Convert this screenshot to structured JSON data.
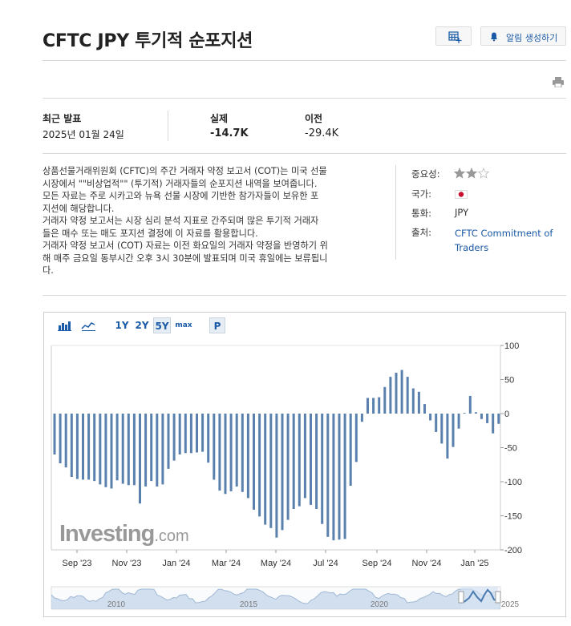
{
  "header": {
    "title": "CFTC JPY 투기적 순포지션",
    "alert_label": "알림 생성하기"
  },
  "stats": {
    "latest_label": "최근 발표",
    "latest_date": "2025년 01월 24일",
    "actual_label": "실제",
    "actual_value": "-14.7K",
    "previous_label": "이전",
    "previous_value": "-29.4K"
  },
  "description": "상품선물거래위원회 (CFTC)의 주간 거래자 약정 보고서 (COT)는 미국 선물\n시장에서 \"\"비상업적\"\" (투기적) 거래자들의 순포지션 내역을 보여줍니다.\n모든 자료는 주로 시카고와 뉴욕 선물 시장에 기반한 참가자들이 보유한 포\n지션에 해당합니다.\n거래자 약정 보고서는 시장 심리 분석 지표로 간주되며 많은 투기적 거래자\n들은 매수 또는 매도 포지션 결정에 이 자료를 활용합니다.\n거래자 약정 보고서 (COT) 자료는 이전 화요일의 거래자 약정을 반영하기 위\n해 매주 금요일 동부시간 오후 3시 30분에 발표되며 미국 휴일에는 보류됩니\n다.",
  "sidebar": {
    "importance_label": "중요성:",
    "importance_stars": 2,
    "country_label": "국가:",
    "country_icon": "japan-flag-icon",
    "currency_label": "통화:",
    "currency_value": "JPY",
    "source_label": "출처:",
    "source_value": "CFTC Commitment of Traders"
  },
  "toolbar": {
    "bar_icon": "bar-chart-icon",
    "line_icon": "line-chart-icon",
    "range_1y": "1Y",
    "range_2y": "2Y",
    "range_5y": "5Y",
    "range_max": "max",
    "p_button": "P",
    "active_range": "5Y"
  },
  "watermark": {
    "brand": "Investing",
    "suffix": ".com"
  },
  "colors": {
    "bar": "#5a81ad",
    "link": "#1a5aa6",
    "navigator_fill": "#b7cde6",
    "navigator_line": "#4a7ab0"
  },
  "chart_data": {
    "type": "bar",
    "title": "",
    "xlabel": "",
    "ylabel": "",
    "ylim": [
      -200,
      100
    ],
    "y_ticks": [
      "100",
      "50",
      "0",
      "-50",
      "-100",
      "-150",
      "-200"
    ],
    "x_tick_labels": [
      "Sep '23",
      "Nov '23",
      "Jan '24",
      "Mar '24",
      "May '24",
      "Jul '24",
      "Sep '24",
      "Nov '24",
      "Jan '25"
    ],
    "navigator_labels": [
      "2010",
      "2015",
      "2020",
      "2025"
    ],
    "unit": "K",
    "series": [
      {
        "values": [
          -60,
          -73,
          -79,
          -93,
          -96,
          -97,
          -97,
          -99,
          -104,
          -108,
          -110,
          -98,
          -103,
          -105,
          -105,
          -132,
          -107,
          -99,
          -107,
          -104,
          -81,
          -69,
          -60,
          -58,
          -58,
          -57,
          -56,
          -72,
          -97,
          -113,
          -118,
          -114,
          -107,
          -115,
          -124,
          -141,
          -151,
          -163,
          -168,
          -182,
          -171,
          -156,
          -140,
          -136,
          -124,
          -134,
          -140,
          -162,
          -181,
          -186,
          -185,
          -184,
          -106,
          -71,
          -12,
          23,
          23,
          24,
          39,
          54,
          60,
          64,
          54,
          37,
          32,
          14,
          -10,
          -27,
          -44,
          -66,
          -49,
          -22,
          1,
          26,
          2,
          -8,
          -14,
          -29,
          -15
        ]
      }
    ]
  }
}
